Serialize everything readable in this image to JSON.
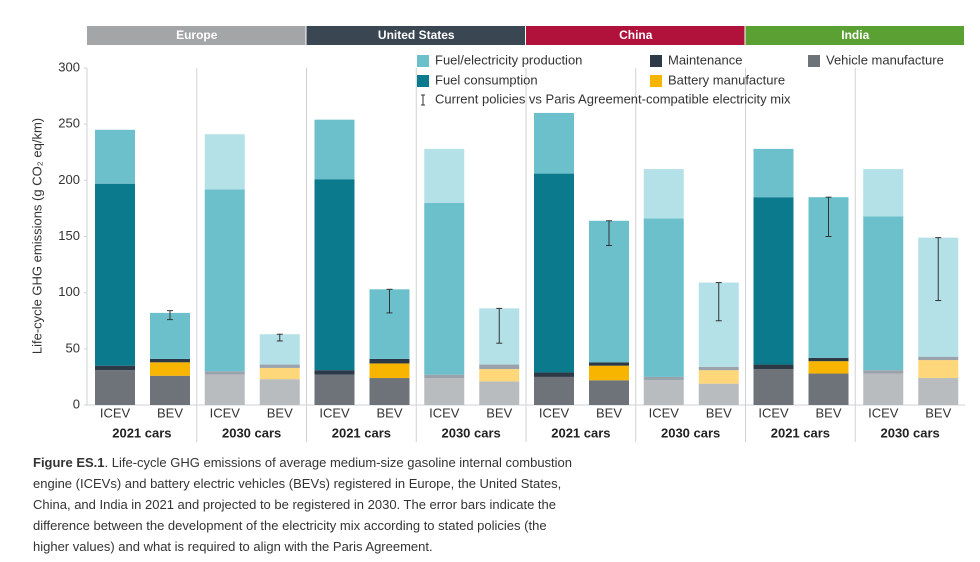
{
  "chart_data": {
    "type": "bar",
    "stacked": true,
    "y_label": "Life-cycle GHG emissions (g CO₂ eq/km)",
    "ylim": [
      0,
      300
    ],
    "yticks": [
      0,
      50,
      100,
      150,
      200,
      250,
      300
    ],
    "regions": [
      {
        "name": "Europe",
        "color": "#a3a5a7"
      },
      {
        "name": "United States",
        "color": "#3a4652"
      },
      {
        "name": "China",
        "color": "#b0123c"
      },
      {
        "name": "India",
        "color": "#5aa032"
      }
    ],
    "groups": [
      "2021 cars",
      "2030 cars",
      "2021 cars",
      "2030 cars",
      "2021 cars",
      "2030 cars",
      "2021 cars",
      "2030 cars"
    ],
    "categories": [
      "ICEV",
      "BEV",
      "ICEV",
      "BEV",
      "ICEV",
      "BEV",
      "ICEV",
      "BEV",
      "ICEV",
      "BEV",
      "ICEV",
      "BEV",
      "ICEV",
      "BEV",
      "ICEV",
      "BEV"
    ],
    "faded": [
      false,
      false,
      true,
      true,
      false,
      false,
      true,
      true,
      false,
      false,
      true,
      true,
      false,
      false,
      true,
      true
    ],
    "series": [
      {
        "name": "Vehicle manufacture",
        "color": "#6d7378",
        "faded_color": "#b8bcbf",
        "values": [
          31,
          26,
          27,
          23,
          27,
          24,
          24,
          21,
          25,
          22,
          22,
          19,
          32,
          28,
          28,
          24
        ]
      },
      {
        "name": "Battery manufacture",
        "color": "#f7b500",
        "faded_color": "#fdd77a",
        "values": [
          0,
          12,
          0,
          10,
          0,
          13,
          0,
          11,
          0,
          13,
          0,
          12,
          0,
          11,
          0,
          16
        ]
      },
      {
        "name": "Maintenance",
        "color": "#2c3a47",
        "faded_color": "#9aa3ab",
        "values": [
          4,
          3,
          3,
          3,
          4,
          4,
          3,
          4,
          4,
          3,
          3,
          3,
          4,
          3,
          3,
          3
        ]
      },
      {
        "name": "Fuel consumption",
        "color": "#0b7a8c",
        "faded_color": "#6cc0cc",
        "values": [
          162,
          0,
          162,
          0,
          170,
          0,
          153,
          0,
          177,
          0,
          141,
          0,
          149,
          0,
          137,
          0
        ]
      },
      {
        "name": "Fuel/electricity production",
        "color": "#6cc0cc",
        "faded_color": "#b4e0e7",
        "values": [
          48,
          41,
          49,
          27,
          53,
          62,
          48,
          50,
          54,
          126,
          44,
          75,
          43,
          143,
          42,
          106
        ]
      }
    ],
    "error_bars": {
      "name": "Current policies vs Paris Agreement-compatible electricity mix",
      "low": [
        null,
        76,
        null,
        57,
        null,
        82,
        null,
        55,
        null,
        142,
        null,
        75,
        null,
        150,
        null,
        93
      ],
      "high": [
        null,
        84,
        null,
        63,
        null,
        103,
        null,
        86,
        null,
        164,
        null,
        109,
        null,
        185,
        null,
        149
      ]
    }
  },
  "caption": {
    "label": "Figure ES.1",
    "lines": [
      ". Life-cycle GHG emissions of average medium-size gasoline internal combustion",
      "engine (ICEVs) and battery electric vehicles (BEVs) registered in Europe, the United States,",
      "China, and India in 2021 and projected to be registered in 2030. The error bars indicate the",
      "difference between the development of the electricity mix according to stated policies (the",
      "higher values) and what is required to align with the Paris Agreement."
    ]
  }
}
